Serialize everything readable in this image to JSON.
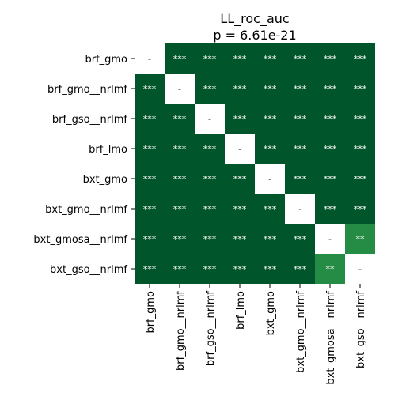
{
  "chart_data": {
    "type": "heatmap",
    "title": "LL_roc_auc",
    "subtitle": "p = 6.61e-21",
    "labels": [
      "brf_gmo",
      "brf_gmo__nrlmf",
      "brf_gso__nrlmf",
      "brf_lmo",
      "bxt_gmo",
      "bxt_gmo__nrlmf",
      "bxt_gmosa__nrlmf",
      "bxt_gso__nrlmf"
    ],
    "cells": [
      [
        "-",
        "***",
        "***",
        "***",
        "***",
        "***",
        "***",
        "***"
      ],
      [
        "***",
        "-",
        "***",
        "***",
        "***",
        "***",
        "***",
        "***"
      ],
      [
        "***",
        "***",
        "-",
        "***",
        "***",
        "***",
        "***",
        "***"
      ],
      [
        "***",
        "***",
        "***",
        "-",
        "***",
        "***",
        "***",
        "***"
      ],
      [
        "***",
        "***",
        "***",
        "***",
        "-",
        "***",
        "***",
        "***"
      ],
      [
        "***",
        "***",
        "***",
        "***",
        "***",
        "-",
        "***",
        "***"
      ],
      [
        "***",
        "***",
        "***",
        "***",
        "***",
        "***",
        "-",
        "**"
      ],
      [
        "***",
        "***",
        "***",
        "***",
        "***",
        "***",
        "**",
        "-"
      ]
    ],
    "colors": {
      "***": "#00562a",
      "**": "#258c45",
      "-": "#ffffff"
    },
    "text_colors": {
      "cell": "#ffffff",
      "diagonal": "#000000"
    }
  }
}
